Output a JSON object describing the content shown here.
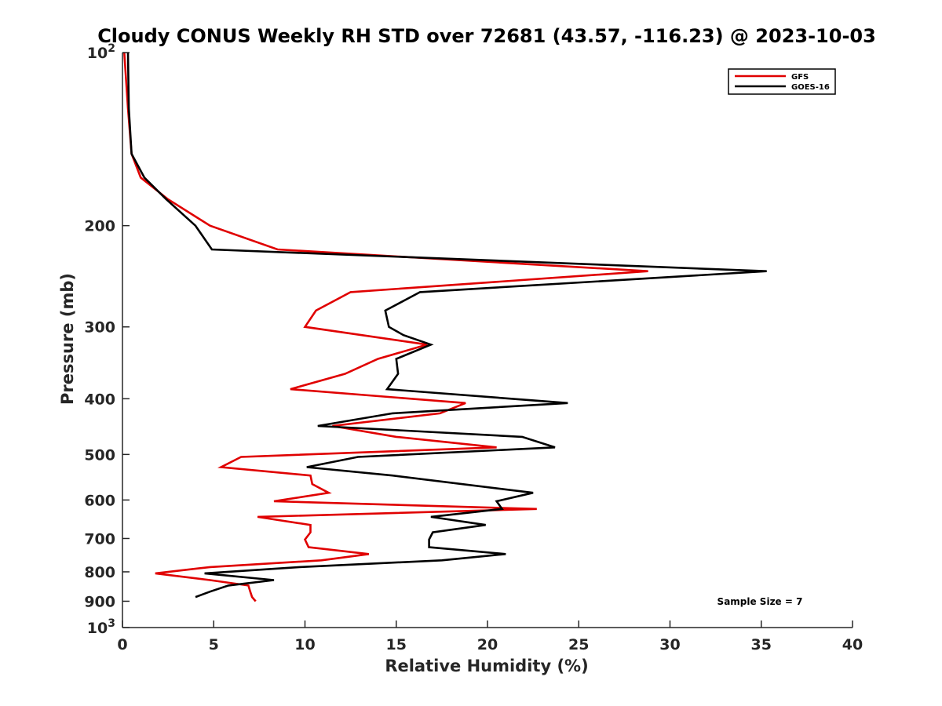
{
  "chart_data": {
    "type": "line",
    "title": "Cloudy CONUS Weekly RH STD over 72681 (43.57, -116.23) @ 2023-10-03",
    "xlabel": "Relative Humidity (%)",
    "ylabel": "Pressure (mb)",
    "xlim": [
      0,
      40
    ],
    "ylim": [
      100,
      1000
    ],
    "y_scale": "log",
    "y_reversed": true,
    "x_ticks": [
      0,
      5,
      10,
      15,
      20,
      25,
      30,
      35,
      40
    ],
    "x_tick_labels": [
      "0",
      "5",
      "10",
      "15",
      "20",
      "25",
      "30",
      "35",
      "40"
    ],
    "y_ticks": [
      100,
      200,
      300,
      400,
      500,
      600,
      700,
      800,
      900,
      1000
    ],
    "y_tick_labels": [
      {
        "base": "10",
        "exp": "2"
      },
      {
        "base": "200",
        "exp": ""
      },
      {
        "base": "300",
        "exp": ""
      },
      {
        "base": "400",
        "exp": ""
      },
      {
        "base": "500",
        "exp": ""
      },
      {
        "base": "600",
        "exp": ""
      },
      {
        "base": "700",
        "exp": ""
      },
      {
        "base": "800",
        "exp": ""
      },
      {
        "base": "900",
        "exp": ""
      },
      {
        "base": "10",
        "exp": "3"
      }
    ],
    "grid": false,
    "legend_position": "top-right",
    "annotation": "Sample Size = 7",
    "series": [
      {
        "name": "GFS",
        "color": "#e00000",
        "points": [
          [
            0.1,
            100
          ],
          [
            0.3,
            125
          ],
          [
            0.5,
            150
          ],
          [
            1.0,
            165
          ],
          [
            2.5,
            180
          ],
          [
            4.8,
            200
          ],
          [
            8.5,
            220
          ],
          [
            28.8,
            240
          ],
          [
            12.5,
            261
          ],
          [
            10.6,
            281
          ],
          [
            10.0,
            300
          ],
          [
            16.7,
            322
          ],
          [
            14.0,
            341
          ],
          [
            12.2,
            362
          ],
          [
            9.2,
            385
          ],
          [
            18.8,
            407
          ],
          [
            17.4,
            424
          ],
          [
            11.5,
            446
          ],
          [
            15.0,
            466
          ],
          [
            20.5,
            486
          ],
          [
            6.5,
            505
          ],
          [
            5.4,
            526
          ],
          [
            10.3,
            544
          ],
          [
            10.4,
            563
          ],
          [
            11.3,
            583
          ],
          [
            8.3,
            603
          ],
          [
            22.7,
            622
          ],
          [
            7.4,
            642
          ],
          [
            10.3,
            663
          ],
          [
            10.3,
            683
          ],
          [
            10.0,
            703
          ],
          [
            10.2,
            725
          ],
          [
            13.5,
            745
          ],
          [
            10.9,
            764
          ],
          [
            4.8,
            785
          ],
          [
            1.8,
            805
          ],
          [
            4.8,
            827
          ],
          [
            6.9,
            845
          ],
          [
            7.0,
            866
          ],
          [
            7.1,
            885
          ],
          [
            7.3,
            900
          ]
        ]
      },
      {
        "name": "GOES-16",
        "color": "#000000",
        "points": [
          [
            0.3,
            100
          ],
          [
            0.35,
            125
          ],
          [
            0.5,
            150
          ],
          [
            1.2,
            165
          ],
          [
            2.4,
            180
          ],
          [
            4.0,
            200
          ],
          [
            4.9,
            220
          ],
          [
            35.3,
            240
          ],
          [
            16.3,
            261
          ],
          [
            14.4,
            281
          ],
          [
            14.6,
            300
          ],
          [
            15.4,
            310
          ],
          [
            16.9,
            322
          ],
          [
            15.0,
            341
          ],
          [
            15.1,
            362
          ],
          [
            14.5,
            385
          ],
          [
            24.4,
            407
          ],
          [
            14.8,
            424
          ],
          [
            10.7,
            446
          ],
          [
            21.9,
            466
          ],
          [
            23.7,
            486
          ],
          [
            12.9,
            505
          ],
          [
            10.1,
            526
          ],
          [
            14.8,
            544
          ],
          [
            22.5,
            583
          ],
          [
            20.5,
            603
          ],
          [
            20.8,
            622
          ],
          [
            16.9,
            642
          ],
          [
            19.9,
            663
          ],
          [
            17.0,
            683
          ],
          [
            16.8,
            703
          ],
          [
            16.8,
            725
          ],
          [
            21.0,
            745
          ],
          [
            17.5,
            764
          ],
          [
            9.7,
            785
          ],
          [
            4.5,
            805
          ],
          [
            8.3,
            827
          ],
          [
            5.8,
            845
          ],
          [
            4.8,
            866
          ],
          [
            4.0,
            885
          ]
        ]
      }
    ]
  }
}
